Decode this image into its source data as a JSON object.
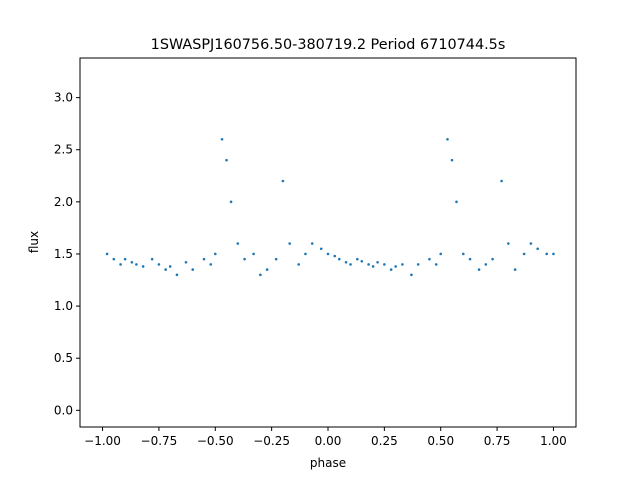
{
  "chart_data": {
    "type": "scatter",
    "title": "1SWASPJ160756.50-380719.2 Period 6710744.5s",
    "xlabel": "phase",
    "ylabel": "flux",
    "xlim": [
      -1.1,
      1.1
    ],
    "ylim": [
      -0.16,
      3.38
    ],
    "xticks": [
      -1.0,
      -0.75,
      -0.5,
      -0.25,
      0.0,
      0.25,
      0.5,
      0.75,
      1.0
    ],
    "xtick_labels": [
      "−1.00",
      "−0.75",
      "−0.50",
      "−0.25",
      "0.00",
      "0.25",
      "0.50",
      "0.75",
      "1.00"
    ],
    "yticks": [
      0.0,
      0.5,
      1.0,
      1.5,
      2.0,
      2.5,
      3.0
    ],
    "ytick_labels": [
      "0.0",
      "0.5",
      "1.0",
      "1.5",
      "2.0",
      "2.5",
      "3.0"
    ],
    "grid": false,
    "marker_color": "#1f77b4",
    "series": [
      {
        "x": [
          -0.98,
          -0.95,
          -0.92,
          -0.9,
          -0.87,
          -0.85,
          -0.82,
          -0.78,
          -0.75,
          -0.72,
          -0.7,
          -0.67,
          -0.63,
          -0.6,
          -0.55,
          -0.52,
          -0.5,
          -0.47,
          -0.45,
          -0.43,
          -0.4,
          -0.37,
          -0.33,
          -0.3,
          -0.27,
          -0.23,
          -0.2,
          -0.17,
          -0.13,
          -0.1,
          -0.07,
          -0.03,
          0.0,
          0.03,
          0.05,
          0.08,
          0.1,
          0.13,
          0.15,
          0.18,
          0.2,
          0.22,
          0.25,
          0.28,
          0.3,
          0.33,
          0.37,
          0.4,
          0.45,
          0.48,
          0.5,
          0.53,
          0.55,
          0.57,
          0.6,
          0.63,
          0.67,
          0.7,
          0.73,
          0.77,
          0.8,
          0.83,
          0.87,
          0.9,
          0.93,
          0.97,
          1.0
        ],
        "y": [
          1.5,
          1.45,
          1.4,
          1.45,
          1.42,
          1.4,
          1.38,
          1.45,
          1.4,
          1.35,
          1.38,
          1.3,
          1.42,
          1.35,
          1.45,
          1.4,
          1.5,
          2.6,
          2.4,
          2.0,
          1.6,
          1.45,
          1.5,
          1.3,
          1.35,
          1.45,
          2.2,
          1.6,
          1.4,
          1.5,
          1.6,
          1.55,
          1.5,
          1.48,
          1.45,
          1.42,
          1.4,
          1.45,
          1.43,
          1.4,
          1.38,
          1.42,
          1.4,
          1.35,
          1.38,
          1.4,
          1.3,
          1.4,
          1.45,
          1.4,
          1.5,
          2.6,
          2.4,
          2.0,
          1.5,
          1.45,
          1.35,
          1.4,
          1.45,
          2.2,
          1.6,
          1.35,
          1.5,
          1.6,
          1.55,
          1.5,
          1.5
        ]
      }
    ]
  }
}
